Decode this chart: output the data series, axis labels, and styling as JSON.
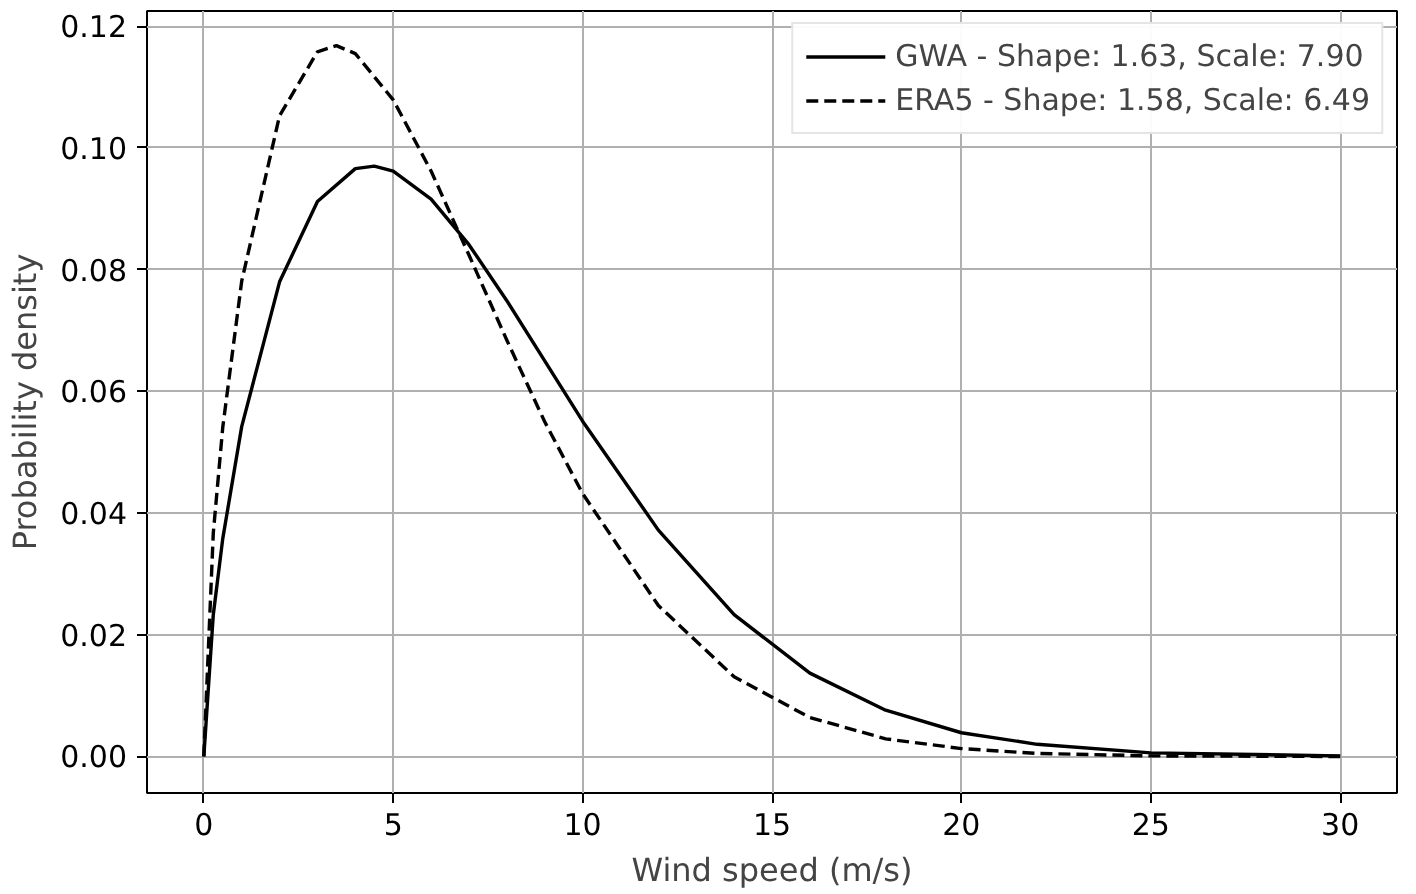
{
  "chart_data": {
    "type": "line",
    "xlabel": "Wind speed (m/s)",
    "ylabel": "Probability density",
    "xlim": [
      -1.5,
      31.5
    ],
    "ylim": [
      -0.006,
      0.1225
    ],
    "xticks": [
      0,
      5,
      10,
      15,
      20,
      25,
      30
    ],
    "yticks": [
      {
        "value": 0,
        "label": "0.00"
      },
      {
        "value": 0.02,
        "label": "0.02"
      },
      {
        "value": 0.04,
        "label": "0.04"
      },
      {
        "value": 0.06,
        "label": "0.06"
      },
      {
        "value": 0.08,
        "label": "0.08"
      },
      {
        "value": 0.1,
        "label": "0.10"
      },
      {
        "value": 0.12,
        "label": "0.12"
      }
    ],
    "grid": true,
    "legend": "top right",
    "marker": "none",
    "series": [
      {
        "name": "GWA - Shape: 1.63, Scale: 7.90",
        "color": "#000000",
        "line_style": "solid",
        "x": [
          0,
          0.25,
          0.5,
          1,
          2,
          3,
          4,
          4.5,
          5,
          6,
          7,
          8,
          9,
          10,
          12,
          14,
          16,
          18,
          20,
          22,
          25,
          30
        ],
        "values": [
          0,
          0.0233,
          0.0358,
          0.0542,
          0.078,
          0.0912,
          0.0966,
          0.097,
          0.0962,
          0.0916,
          0.0841,
          0.0749,
          0.065,
          0.0551,
          0.0372,
          0.0233,
          0.0137,
          0.0076,
          0.0039,
          0.002,
          0.0006,
          0.0001
        ]
      },
      {
        "name": "ERA5 - Shape: 1.58, Scale: 6.49",
        "color": "#000000",
        "line_style": "dashed",
        "x": [
          0,
          0.25,
          0.5,
          1,
          2,
          3,
          3.5,
          4,
          5,
          6,
          7,
          8,
          9,
          10,
          12,
          14,
          16,
          18,
          20,
          22,
          25,
          30
        ],
        "values": [
          0,
          0.0367,
          0.0541,
          0.0781,
          0.1053,
          0.1158,
          0.1168,
          0.1155,
          0.1079,
          0.0962,
          0.0824,
          0.0684,
          0.055,
          0.0432,
          0.0248,
          0.0131,
          0.0064,
          0.0029,
          0.0013,
          0.0005,
          0.0001,
          0
        ]
      }
    ]
  }
}
